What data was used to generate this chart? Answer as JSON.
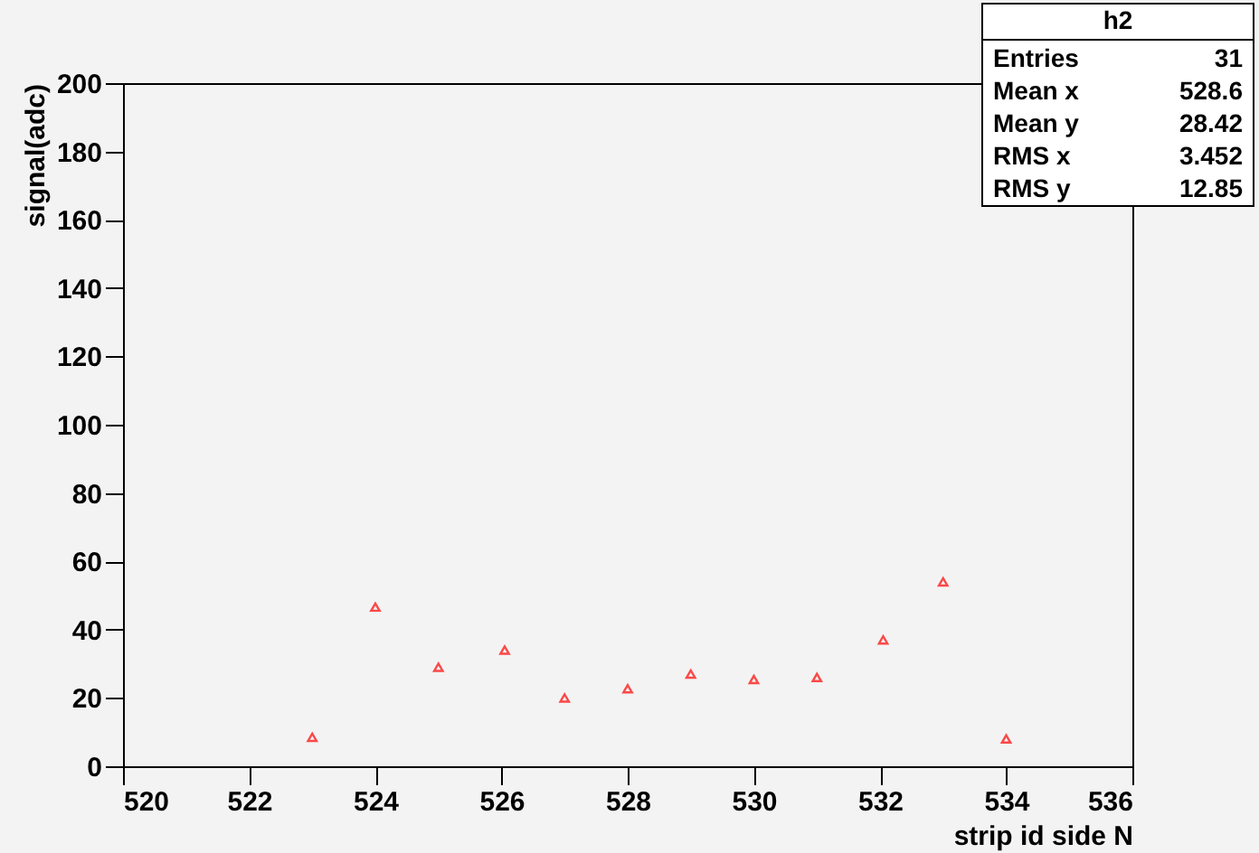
{
  "chart_data": {
    "type": "scatter",
    "xlabel": "strip id side N",
    "ylabel": "signal(adc)",
    "x": [
      523,
      524,
      525,
      526.05,
      527,
      528,
      529,
      530,
      531,
      532.05,
      533,
      534
    ],
    "series": [
      {
        "color": "#ff0000",
        "values": [
          8.5,
          46.6,
          29,
          34,
          20,
          22.7,
          27,
          25.4,
          26,
          37,
          54,
          8
        ]
      }
    ],
    "xlim": [
      520,
      536
    ],
    "xticks": [
      520,
      522,
      524,
      526,
      528,
      530,
      532,
      534,
      536
    ],
    "ylim": [
      0,
      200
    ],
    "yticks": [
      0,
      20,
      40,
      60,
      80,
      100,
      120,
      140,
      160,
      180,
      200
    ],
    "marker": "triangle",
    "grid": false,
    "annotations": [
      "h2",
      "Entries",
      "31",
      "Mean x",
      "528.6",
      "Mean y",
      "28.42",
      "RMS x",
      "3.452",
      "RMS y",
      "12.85"
    ]
  }
}
